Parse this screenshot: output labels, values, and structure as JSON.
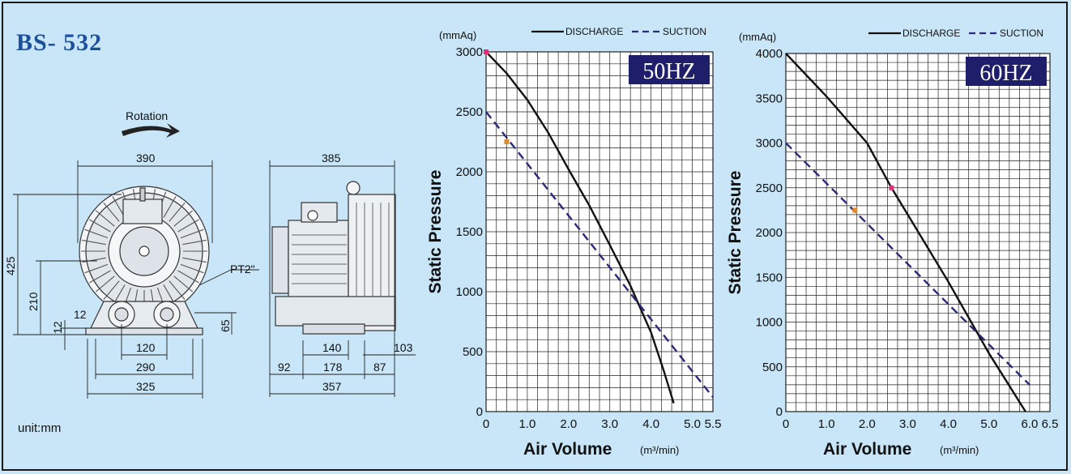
{
  "model": "BS- 532",
  "unit_label": "unit:mm",
  "drawing": {
    "rotation_label": "Rotation",
    "pipe_label": "PT2\"",
    "front_dims": {
      "width": "390",
      "height": "425",
      "center_height": "210",
      "foot_height": "12",
      "inlet_height": "65",
      "port_gap": "12",
      "port_spacing": "120",
      "bolt_span": "290",
      "base_width": "325"
    },
    "side_dims": {
      "length": "385",
      "foot_spacing": "140",
      "foot_a": "92",
      "foot_b": "178",
      "foot_c": "87",
      "overhang": "103",
      "base_length": "357"
    }
  },
  "chart_data": [
    {
      "type": "line",
      "badge": "50HZ",
      "y_unit": "(mmAq)",
      "ylabel": "Static Pressure",
      "xlabel": "Air Volume",
      "x_unit": "(m³/min)",
      "xlim": [
        0,
        5.5
      ],
      "ylim": [
        0,
        3000
      ],
      "x_ticks": [
        "0",
        "1.0",
        "2.0",
        "3.0",
        "4.0",
        "5.0",
        "5.5"
      ],
      "x_tick_values": [
        0,
        1,
        2,
        3,
        4,
        5,
        5.5
      ],
      "y_ticks": [
        "0",
        "500",
        "1000",
        "1500",
        "2000",
        "2500",
        "3000"
      ],
      "y_tick_values": [
        0,
        500,
        1000,
        1500,
        2000,
        2500,
        3000
      ],
      "grid": true,
      "legend_position": "top",
      "series": [
        {
          "name": "DISCHARGE",
          "style": "solid",
          "color": "#111111",
          "x": [
            0,
            0.5,
            1.0,
            1.5,
            2.0,
            2.5,
            3.0,
            3.5,
            4.0,
            4.3,
            4.55
          ],
          "y": [
            3000,
            2820,
            2600,
            2330,
            2020,
            1720,
            1390,
            1050,
            660,
            350,
            70
          ]
        },
        {
          "name": "SUCTION",
          "style": "dashed",
          "color": "#2b2b7a",
          "x": [
            0,
            5.5
          ],
          "y": [
            2500,
            120
          ]
        }
      ],
      "markers": [
        {
          "x": 0,
          "y": 3000,
          "color": "#e0307a"
        },
        {
          "x": 0.5,
          "y": 2250,
          "color": "#e08a2a"
        }
      ]
    },
    {
      "type": "line",
      "badge": "60HZ",
      "y_unit": "(mmAq)",
      "ylabel": "Static Pressure",
      "xlabel": "Air Volume",
      "x_unit": "(m³/min)",
      "xlim": [
        0,
        6.5
      ],
      "ylim": [
        0,
        4000
      ],
      "x_ticks": [
        "0",
        "1.0",
        "2.0",
        "3.0",
        "4.0",
        "5.0",
        "6.0",
        "6.5"
      ],
      "x_tick_values": [
        0,
        1,
        2,
        3,
        4,
        5,
        6,
        6.5
      ],
      "y_ticks": [
        "0",
        "500",
        "1000",
        "1500",
        "2000",
        "2500",
        "3000",
        "3500",
        "4000"
      ],
      "y_tick_values": [
        0,
        500,
        1000,
        1500,
        2000,
        2500,
        3000,
        3500,
        4000
      ],
      "grid": true,
      "legend_position": "top",
      "series": [
        {
          "name": "DISCHARGE",
          "style": "solid",
          "color": "#111111",
          "x": [
            0,
            1.0,
            2.0,
            2.6,
            3.0,
            4.0,
            5.0,
            5.9
          ],
          "y": [
            4000,
            3520,
            3000,
            2500,
            2200,
            1450,
            650,
            0
          ]
        },
        {
          "name": "SUCTION",
          "style": "dashed",
          "color": "#2b2b7a",
          "x": [
            0,
            6.0
          ],
          "y": [
            3000,
            300
          ]
        }
      ],
      "markers": [
        {
          "x": 2.6,
          "y": 2500,
          "color": "#e0307a"
        },
        {
          "x": 1.7,
          "y": 2250,
          "color": "#e08a2a"
        }
      ]
    }
  ]
}
